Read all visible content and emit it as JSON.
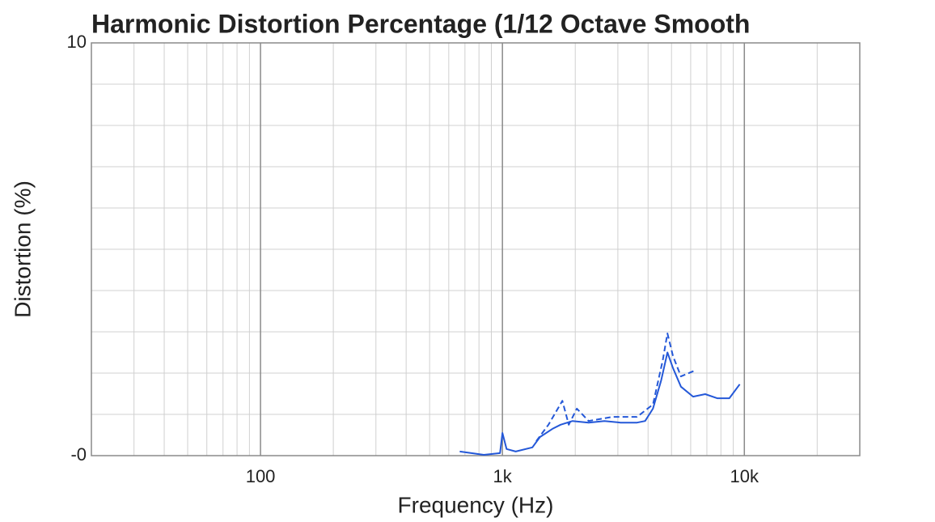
{
  "chart_data": {
    "type": "line",
    "title": "Harmonic Distortion Percentage (1/12 Octave Smooth",
    "xlabel": "Frequency (Hz)",
    "ylabel": "Distortion (%)",
    "xscale": "log",
    "xlim": [
      20,
      30000
    ],
    "ylim": [
      0,
      10
    ],
    "xticks": [
      100,
      {
        "value": 1000,
        "label": "1k"
      },
      {
        "value": 10000,
        "label": "10k"
      }
    ],
    "yticks": [
      {
        "value": 0,
        "label": "-0"
      },
      10
    ],
    "minor_xticks": [
      20,
      30,
      40,
      50,
      60,
      70,
      80,
      90,
      200,
      300,
      400,
      500,
      600,
      700,
      800,
      900,
      2000,
      3000,
      4000,
      5000,
      6000,
      7000,
      8000,
      9000,
      20000
    ],
    "minor_yticks": [
      1,
      2,
      3,
      4,
      5,
      6,
      7,
      8,
      9
    ],
    "grid": true,
    "series": [
      {
        "color": "#2458d8",
        "style": "solid",
        "x": [
          666,
          838,
          977,
          1000,
          1040,
          1135,
          1330,
          1430,
          1610,
          1740,
          1950,
          2270,
          2640,
          3080,
          3600,
          3890,
          4190,
          4530,
          4810,
          5070,
          5470,
          6140,
          6890,
          7720,
          8670,
          9570
        ],
        "values": [
          0.1,
          0.02,
          0.06,
          0.55,
          0.16,
          0.1,
          0.2,
          0.45,
          0.65,
          0.75,
          0.84,
          0.8,
          0.84,
          0.8,
          0.8,
          0.84,
          1.14,
          1.82,
          2.5,
          2.12,
          1.67,
          1.43,
          1.49,
          1.39,
          1.39,
          1.73
        ]
      },
      {
        "color": "#2458d8",
        "style": "dashed",
        "x": [
          1380,
          1550,
          1770,
          1880,
          2030,
          2270,
          2850,
          3600,
          4190,
          4600,
          4810,
          5070,
          5470,
          6240
        ],
        "values": [
          0.35,
          0.75,
          1.33,
          0.75,
          1.14,
          0.84,
          0.94,
          0.94,
          1.24,
          2.31,
          2.96,
          2.41,
          1.92,
          2.06
        ]
      }
    ]
  }
}
